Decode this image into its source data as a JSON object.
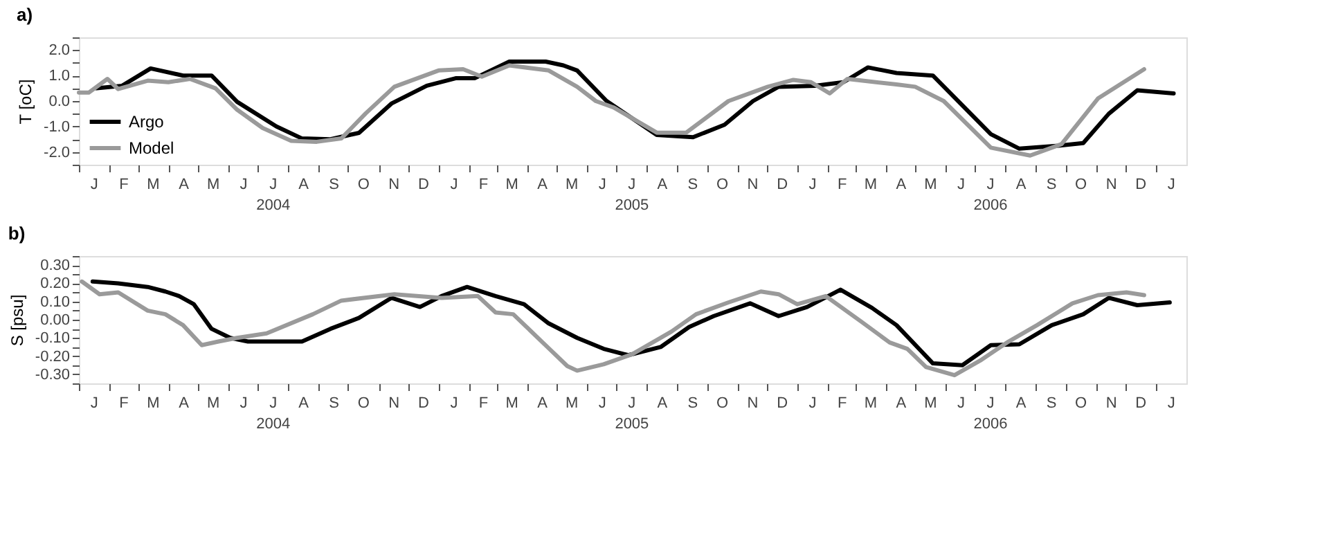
{
  "chart_data": [
    {
      "type": "line",
      "title": "a)",
      "ylabel": "T [oC]",
      "legend": "bottom left",
      "grid": false,
      "line_style": "solid",
      "marker": "none",
      "xlim": [
        "2004-01-01",
        "2007-02-01"
      ],
      "ylim": [
        -2.5,
        2.5
      ],
      "xticks": [
        {
          "value": "2004-01-01",
          "label": null
        },
        {
          "value": "2004-01-16",
          "label": "J"
        },
        {
          "value": "2004-02-01",
          "label": null
        },
        {
          "value": "2004-02-15",
          "label": "F"
        },
        {
          "value": "2004-03-01",
          "label": null
        },
        {
          "value": "2004-03-16",
          "label": "M"
        },
        {
          "value": "2004-04-01",
          "label": null
        },
        {
          "value": "2004-04-16",
          "label": "A"
        },
        {
          "value": "2004-05-01",
          "label": null
        },
        {
          "value": "2004-05-16",
          "label": "M"
        },
        {
          "value": "2004-06-01",
          "label": null
        },
        {
          "value": "2004-06-16",
          "label": "J"
        },
        {
          "value": "2004-07-01",
          "label": null
        },
        {
          "value": "2004-07-16",
          "label": "J\n2004"
        },
        {
          "value": "2004-08-01",
          "label": null
        },
        {
          "value": "2004-08-16",
          "label": "A"
        },
        {
          "value": "2004-09-01",
          "label": null
        },
        {
          "value": "2004-09-16",
          "label": "S"
        },
        {
          "value": "2004-10-01",
          "label": null
        },
        {
          "value": "2004-10-16",
          "label": "O"
        },
        {
          "value": "2004-11-01",
          "label": null
        },
        {
          "value": "2004-11-16",
          "label": "N"
        },
        {
          "value": "2004-12-01",
          "label": null
        },
        {
          "value": "2004-12-16",
          "label": "D"
        },
        {
          "value": "2005-01-01",
          "label": null
        },
        {
          "value": "2005-01-16",
          "label": "J"
        },
        {
          "value": "2005-02-01",
          "label": null
        },
        {
          "value": "2005-02-15",
          "label": "F"
        },
        {
          "value": "2005-03-01",
          "label": null
        },
        {
          "value": "2005-03-16",
          "label": "M"
        },
        {
          "value": "2005-04-01",
          "label": null
        },
        {
          "value": "2005-04-16",
          "label": "A"
        },
        {
          "value": "2005-05-01",
          "label": null
        },
        {
          "value": "2005-05-16",
          "label": "M"
        },
        {
          "value": "2005-06-01",
          "label": null
        },
        {
          "value": "2005-06-16",
          "label": "J"
        },
        {
          "value": "2005-07-01",
          "label": null
        },
        {
          "value": "2005-07-16",
          "label": "J\n2005"
        },
        {
          "value": "2005-08-01",
          "label": null
        },
        {
          "value": "2005-08-16",
          "label": "A"
        },
        {
          "value": "2005-09-01",
          "label": null
        },
        {
          "value": "2005-09-16",
          "label": "S"
        },
        {
          "value": "2005-10-01",
          "label": null
        },
        {
          "value": "2005-10-16",
          "label": "O"
        },
        {
          "value": "2005-11-01",
          "label": null
        },
        {
          "value": "2005-11-16",
          "label": "N"
        },
        {
          "value": "2005-12-01",
          "label": null
        },
        {
          "value": "2005-12-16",
          "label": "D"
        },
        {
          "value": "2006-01-01",
          "label": null
        },
        {
          "value": "2006-01-16",
          "label": "J"
        },
        {
          "value": "2006-02-01",
          "label": null
        },
        {
          "value": "2006-02-15",
          "label": "F"
        },
        {
          "value": "2006-03-01",
          "label": null
        },
        {
          "value": "2006-03-16",
          "label": "M"
        },
        {
          "value": "2006-04-01",
          "label": null
        },
        {
          "value": "2006-04-16",
          "label": "A"
        },
        {
          "value": "2006-05-01",
          "label": null
        },
        {
          "value": "2006-05-16",
          "label": "M"
        },
        {
          "value": "2006-06-01",
          "label": null
        },
        {
          "value": "2006-06-16",
          "label": "J"
        },
        {
          "value": "2006-07-01",
          "label": null
        },
        {
          "value": "2006-07-16",
          "label": "J\n2006"
        },
        {
          "value": "2006-08-01",
          "label": null
        },
        {
          "value": "2006-08-16",
          "label": "A"
        },
        {
          "value": "2006-09-01",
          "label": null
        },
        {
          "value": "2006-09-16",
          "label": "S"
        },
        {
          "value": "2006-10-01",
          "label": null
        },
        {
          "value": "2006-10-16",
          "label": "O"
        },
        {
          "value": "2006-11-01",
          "label": null
        },
        {
          "value": "2006-11-16",
          "label": "N"
        },
        {
          "value": "2006-12-01",
          "label": null
        },
        {
          "value": "2006-12-16",
          "label": "D"
        },
        {
          "value": "2007-01-01",
          "label": null
        },
        {
          "value": "2007-01-16",
          "label": "J"
        }
      ],
      "yticks": [
        {
          "value": -2.5,
          "label": null
        },
        {
          "value": -2,
          "label": "-2.0"
        },
        {
          "value": -1.5,
          "label": null
        },
        {
          "value": -1,
          "label": "-1.0"
        },
        {
          "value": -0.5,
          "label": null
        },
        {
          "value": 0,
          "label": "0.0"
        },
        {
          "value": 0.5,
          "label": null
        },
        {
          "value": 1,
          "label": "1.0"
        },
        {
          "value": 1.5,
          "label": null
        },
        {
          "value": 2,
          "label": "2.0"
        },
        {
          "value": 2.5,
          "label": null
        }
      ],
      "series": [
        {
          "name": "Argo",
          "color": "#000000",
          "x": [
            "2004-01-19",
            "2004-02-14",
            "2004-03-14",
            "2004-04-16",
            "2004-05-15",
            "2004-06-10",
            "2004-07-20",
            "2004-08-15",
            "2004-09-13",
            "2004-10-12",
            "2004-11-14",
            "2004-12-20",
            "2005-01-19",
            "2005-02-07",
            "2005-03-14",
            "2005-04-20",
            "2005-05-08",
            "2005-05-22",
            "2005-06-21",
            "2005-08-11",
            "2005-09-17",
            "2005-10-19",
            "2005-11-17",
            "2005-12-13",
            "2006-01-19",
            "2006-02-17",
            "2006-03-14",
            "2006-04-12",
            "2006-05-19",
            "2006-07-17",
            "2006-08-15",
            "2006-09-24",
            "2006-10-19",
            "2006-11-14",
            "2006-12-13",
            "2007-01-19"
          ],
          "values": [
            0.5,
            0.6,
            1.28,
            1.0,
            1.0,
            -0.03,
            -1.0,
            -1.47,
            -1.5,
            -1.25,
            -0.1,
            0.6,
            0.9,
            0.9,
            1.55,
            1.55,
            1.4,
            1.2,
            0.0,
            -1.33,
            -1.42,
            -0.93,
            0.0,
            0.56,
            0.6,
            0.74,
            1.32,
            1.1,
            1.0,
            -1.3,
            -1.87,
            -1.75,
            -1.65,
            -0.5,
            0.42,
            0.3
          ]
        },
        {
          "name": "Model",
          "color": "#9a9a9a",
          "x": [
            "2004-01-01",
            "2004-01-11",
            "2004-01-30",
            "2004-02-10",
            "2004-03-11",
            "2004-04-01",
            "2004-04-23",
            "2004-05-19",
            "2004-06-10",
            "2004-07-06",
            "2004-08-04",
            "2004-08-30",
            "2004-09-24",
            "2004-10-19",
            "2004-11-17",
            "2005-01-01",
            "2005-01-26",
            "2005-02-14",
            "2005-03-14",
            "2005-04-23",
            "2005-05-22",
            "2005-06-10",
            "2005-06-28",
            "2005-08-11",
            "2005-09-10",
            "2005-10-23",
            "2005-12-02",
            "2005-12-28",
            "2006-01-15",
            "2006-02-03",
            "2006-02-21",
            "2006-04-12",
            "2006-05-01",
            "2006-05-30",
            "2006-07-17",
            "2006-08-26",
            "2006-09-27",
            "2006-11-03",
            "2006-12-20"
          ],
          "values": [
            0.33,
            0.33,
            0.87,
            0.47,
            0.8,
            0.74,
            0.87,
            0.5,
            -0.34,
            -1.06,
            -1.56,
            -1.6,
            -1.47,
            -0.48,
            0.56,
            1.2,
            1.25,
            0.96,
            1.4,
            1.2,
            0.56,
            0.0,
            -0.25,
            -1.24,
            -1.24,
            0.0,
            0.56,
            0.83,
            0.74,
            0.3,
            0.87,
            0.65,
            0.56,
            0.0,
            -1.83,
            -2.14,
            -1.69,
            0.1,
            1.25
          ]
        }
      ]
    },
    {
      "type": "line",
      "title": "b)",
      "ylabel": "S [psu]",
      "grid": false,
      "line_style": "solid",
      "marker": "none",
      "xlim": [
        "2004-01-01",
        "2007-02-01"
      ],
      "ylim": [
        -0.35,
        0.35
      ],
      "xticks": [
        {
          "value": "2004-01-01",
          "label": null
        },
        {
          "value": "2004-01-16",
          "label": "J"
        },
        {
          "value": "2004-02-01",
          "label": null
        },
        {
          "value": "2004-02-15",
          "label": "F"
        },
        {
          "value": "2004-03-01",
          "label": null
        },
        {
          "value": "2004-03-16",
          "label": "M"
        },
        {
          "value": "2004-04-01",
          "label": null
        },
        {
          "value": "2004-04-16",
          "label": "A"
        },
        {
          "value": "2004-05-01",
          "label": null
        },
        {
          "value": "2004-05-16",
          "label": "M"
        },
        {
          "value": "2004-06-01",
          "label": null
        },
        {
          "value": "2004-06-16",
          "label": "J"
        },
        {
          "value": "2004-07-01",
          "label": null
        },
        {
          "value": "2004-07-16",
          "label": "J\n2004"
        },
        {
          "value": "2004-08-01",
          "label": null
        },
        {
          "value": "2004-08-16",
          "label": "A"
        },
        {
          "value": "2004-09-01",
          "label": null
        },
        {
          "value": "2004-09-16",
          "label": "S"
        },
        {
          "value": "2004-10-01",
          "label": null
        },
        {
          "value": "2004-10-16",
          "label": "O"
        },
        {
          "value": "2004-11-01",
          "label": null
        },
        {
          "value": "2004-11-16",
          "label": "N"
        },
        {
          "value": "2004-12-01",
          "label": null
        },
        {
          "value": "2004-12-16",
          "label": "D"
        },
        {
          "value": "2005-01-01",
          "label": null
        },
        {
          "value": "2005-01-16",
          "label": "J"
        },
        {
          "value": "2005-02-01",
          "label": null
        },
        {
          "value": "2005-02-15",
          "label": "F"
        },
        {
          "value": "2005-03-01",
          "label": null
        },
        {
          "value": "2005-03-16",
          "label": "M"
        },
        {
          "value": "2005-04-01",
          "label": null
        },
        {
          "value": "2005-04-16",
          "label": "A"
        },
        {
          "value": "2005-05-01",
          "label": null
        },
        {
          "value": "2005-05-16",
          "label": "M"
        },
        {
          "value": "2005-06-01",
          "label": null
        },
        {
          "value": "2005-06-16",
          "label": "J"
        },
        {
          "value": "2005-07-01",
          "label": null
        },
        {
          "value": "2005-07-16",
          "label": "J\n2005"
        },
        {
          "value": "2005-08-01",
          "label": null
        },
        {
          "value": "2005-08-16",
          "label": "A"
        },
        {
          "value": "2005-09-01",
          "label": null
        },
        {
          "value": "2005-09-16",
          "label": "S"
        },
        {
          "value": "2005-10-01",
          "label": null
        },
        {
          "value": "2005-10-16",
          "label": "O"
        },
        {
          "value": "2005-11-01",
          "label": null
        },
        {
          "value": "2005-11-16",
          "label": "N"
        },
        {
          "value": "2005-12-01",
          "label": null
        },
        {
          "value": "2005-12-16",
          "label": "D"
        },
        {
          "value": "2006-01-01",
          "label": null
        },
        {
          "value": "2006-01-16",
          "label": "J"
        },
        {
          "value": "2006-02-01",
          "label": null
        },
        {
          "value": "2006-02-15",
          "label": "F"
        },
        {
          "value": "2006-03-01",
          "label": null
        },
        {
          "value": "2006-03-16",
          "label": "M"
        },
        {
          "value": "2006-04-01",
          "label": null
        },
        {
          "value": "2006-04-16",
          "label": "A"
        },
        {
          "value": "2006-05-01",
          "label": null
        },
        {
          "value": "2006-05-16",
          "label": "M"
        },
        {
          "value": "2006-06-01",
          "label": null
        },
        {
          "value": "2006-06-16",
          "label": "J"
        },
        {
          "value": "2006-07-01",
          "label": null
        },
        {
          "value": "2006-07-16",
          "label": "J\n2006"
        },
        {
          "value": "2006-08-01",
          "label": null
        },
        {
          "value": "2006-08-16",
          "label": "A"
        },
        {
          "value": "2006-09-01",
          "label": null
        },
        {
          "value": "2006-09-16",
          "label": "S"
        },
        {
          "value": "2006-10-01",
          "label": null
        },
        {
          "value": "2006-10-16",
          "label": "O"
        },
        {
          "value": "2006-11-01",
          "label": null
        },
        {
          "value": "2006-11-16",
          "label": "N"
        },
        {
          "value": "2006-12-01",
          "label": null
        },
        {
          "value": "2006-12-16",
          "label": "D"
        },
        {
          "value": "2007-01-01",
          "label": null
        },
        {
          "value": "2007-01-16",
          "label": "J"
        }
      ],
      "yticks": [
        {
          "value": -0.35,
          "label": null
        },
        {
          "value": -0.3,
          "label": "-0.30"
        },
        {
          "value": -0.25,
          "label": null
        },
        {
          "value": -0.2,
          "label": "-0.20"
        },
        {
          "value": -0.15,
          "label": null
        },
        {
          "value": -0.1,
          "label": "-0.10"
        },
        {
          "value": -0.05,
          "label": null
        },
        {
          "value": 0,
          "label": "0.00"
        },
        {
          "value": 0.05,
          "label": null
        },
        {
          "value": 0.1,
          "label": "0.10"
        },
        {
          "value": 0.15,
          "label": null
        },
        {
          "value": 0.2,
          "label": "0.20"
        },
        {
          "value": 0.25,
          "label": null
        },
        {
          "value": 0.3,
          "label": "0.30"
        },
        {
          "value": 0.35,
          "label": null
        }
      ],
      "series": [
        {
          "color": "#000000",
          "x": [
            "2004-01-15",
            "2004-02-10",
            "2004-03-11",
            "2004-03-29",
            "2004-04-12",
            "2004-04-27",
            "2004-05-15",
            "2004-06-03",
            "2004-06-21",
            "2004-08-15",
            "2004-09-13",
            "2004-10-12",
            "2004-11-14",
            "2004-12-13",
            "2005-01-04",
            "2005-01-30",
            "2005-02-28",
            "2005-03-29",
            "2005-04-23",
            "2005-05-22",
            "2005-06-18",
            "2005-07-13",
            "2005-08-15",
            "2005-09-13",
            "2005-10-08",
            "2005-11-14",
            "2005-12-13",
            "2006-01-11",
            "2006-02-14",
            "2006-03-18",
            "2006-04-12",
            "2006-05-19",
            "2006-06-18",
            "2006-07-17",
            "2006-08-15",
            "2006-09-17",
            "2006-10-19",
            "2006-11-14",
            "2006-12-13",
            "2007-01-15"
          ],
          "values": [
            0.21,
            0.2,
            0.18,
            0.155,
            0.13,
            0.085,
            -0.05,
            -0.1,
            -0.12,
            -0.12,
            -0.05,
            0.01,
            0.12,
            0.07,
            0.13,
            0.18,
            0.13,
            0.085,
            -0.02,
            -0.1,
            -0.16,
            -0.195,
            -0.15,
            -0.04,
            0.02,
            0.09,
            0.02,
            0.07,
            0.165,
            0.065,
            -0.03,
            -0.24,
            -0.25,
            -0.14,
            -0.135,
            -0.03,
            0.03,
            0.12,
            0.08,
            0.095
          ]
        },
        {
          "color": "#9a9a9a",
          "x": [
            "2004-01-04",
            "2004-01-22",
            "2004-02-10",
            "2004-03-11",
            "2004-03-29",
            "2004-04-16",
            "2004-05-05",
            "2004-05-22",
            "2004-06-10",
            "2004-07-10",
            "2004-08-26",
            "2004-09-24",
            "2004-11-17",
            "2005-01-04",
            "2005-02-10",
            "2005-02-28",
            "2005-03-18",
            "2005-04-16",
            "2005-05-12",
            "2005-05-22",
            "2005-06-18",
            "2005-07-17",
            "2005-08-26",
            "2005-09-20",
            "2005-10-23",
            "2005-11-25",
            "2005-12-13",
            "2006-01-01",
            "2006-01-30",
            "2006-03-07",
            "2006-04-05",
            "2006-04-23",
            "2006-05-12",
            "2006-06-10",
            "2006-07-06",
            "2006-08-04",
            "2006-09-02",
            "2006-10-08",
            "2006-11-03",
            "2006-12-02",
            "2006-12-20"
          ],
          "values": [
            0.21,
            0.14,
            0.15,
            0.05,
            0.03,
            -0.03,
            -0.14,
            -0.12,
            -0.1,
            -0.075,
            0.03,
            0.105,
            0.14,
            0.12,
            0.13,
            0.04,
            0.03,
            -0.12,
            -0.255,
            -0.28,
            -0.245,
            -0.19,
            -0.065,
            0.03,
            0.095,
            0.155,
            0.14,
            0.085,
            0.13,
            -0.01,
            -0.125,
            -0.16,
            -0.26,
            -0.305,
            -0.225,
            -0.12,
            -0.03,
            0.09,
            0.135,
            0.15,
            0.135
          ]
        }
      ]
    }
  ]
}
